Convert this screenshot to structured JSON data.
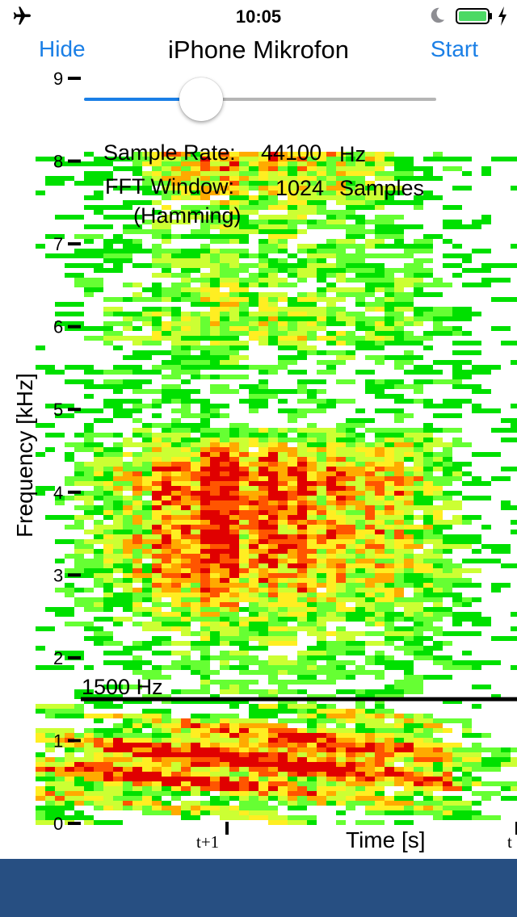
{
  "status_bar": {
    "time": "10:05",
    "icons": [
      "airplane-icon",
      "moon-icon",
      "battery-icon",
      "charging-bolt-icon"
    ],
    "battery_color": "#4cd964"
  },
  "nav": {
    "title": "iPhone Mikrofon",
    "left_button": "Hide",
    "right_button": "Start",
    "accent_color": "#1a7fe6"
  },
  "slider": {
    "value": 0.31
  },
  "info": {
    "sample_rate_label": "Sample Rate:",
    "sample_rate_value": "44100",
    "sample_rate_unit": "Hz",
    "fft_label": "FFT Window:",
    "fft_value": "1024",
    "fft_unit": "Samples",
    "fft_window_type": "(Hamming)"
  },
  "plot": {
    "y_axis_label": "Frequency [kHz]",
    "y_ticks": [
      "0",
      "1",
      "2",
      "3",
      "4",
      "5",
      "6",
      "7",
      "8",
      "9"
    ],
    "x_axis_label": "Time [s]",
    "x_tick_labels": [
      "t+1",
      "t"
    ],
    "marker_label": "1500 Hz",
    "marker_khz": 1.5,
    "colormap": [
      "#00e000",
      "#66ff33",
      "#ccff33",
      "#ffee22",
      "#ffaa00",
      "#ff5500",
      "#e00000"
    ]
  },
  "bottom_bar": {
    "color": "#274f82"
  }
}
